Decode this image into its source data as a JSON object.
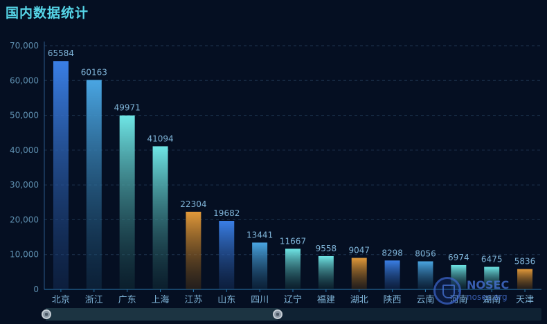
{
  "header": {
    "title": "国内数据统计"
  },
  "watermark": {
    "brand": "NOSEC",
    "site": "nosec.org"
  },
  "chart_data": {
    "type": "bar",
    "title": "国内数据统计",
    "categories": [
      "北京",
      "浙江",
      "广东",
      "上海",
      "江苏",
      "山东",
      "四川",
      "辽宁",
      "福建",
      "湖北",
      "陕西",
      "云南",
      "河南",
      "湖南",
      "天津"
    ],
    "values": [
      65584,
      60163,
      49971,
      41094,
      22304,
      19682,
      13441,
      11667,
      9558,
      9047,
      8298,
      8056,
      6974,
      6475,
      5836
    ],
    "y_ticks": [
      "0",
      "10,000",
      "20,000",
      "30,000",
      "40,000",
      "50,000",
      "60,000",
      "70,000"
    ],
    "ylim": [
      0,
      70000
    ],
    "grid": true,
    "legend": "none",
    "colors": {
      "blue": [
        "#3a7fe6",
        "#1a3a6e"
      ],
      "sky": [
        "#4aa6e3",
        "#173f5e"
      ],
      "teal": [
        "#6fe6e6",
        "#163a40"
      ],
      "orange": [
        "#e39a3a",
        "#5a3a12"
      ]
    },
    "bar_color_keys": [
      "blue",
      "sky",
      "teal",
      "teal",
      "orange",
      "blue",
      "sky",
      "teal",
      "teal",
      "orange",
      "blue",
      "sky",
      "teal",
      "teal",
      "orange"
    ]
  }
}
